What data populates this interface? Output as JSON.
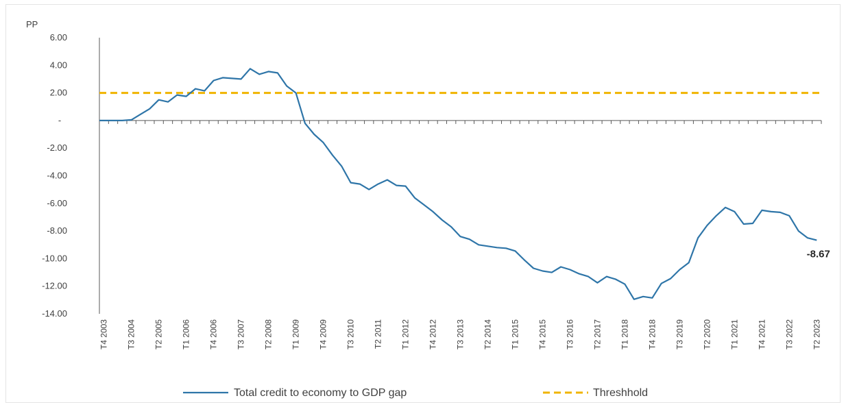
{
  "chart_data": {
    "type": "line",
    "title": "",
    "ylabel": "PP",
    "xlabel": "",
    "ylim": [
      -14,
      6
    ],
    "yticks": [
      "6.00",
      "4.00",
      "2.00",
      "-",
      "-2.00",
      "-4.00",
      "-6.00",
      "-8.00",
      "-10.00",
      "-12.00",
      "-14.00"
    ],
    "xtick_labels": [
      "T4 2003",
      "T3 2004",
      "T2 2005",
      "T1 2006",
      "T4 2006",
      "T3 2007",
      "T2 2008",
      "T1 2009",
      "T4 2009",
      "T3 2010",
      "T2 2011",
      "T1 2012",
      "T4 2012",
      "T3 2013",
      "T2 2014",
      "T1 2015",
      "T4 2015",
      "T3 2016",
      "T2 2017",
      "T1 2018",
      "T4 2018",
      "T3 2019",
      "T2 2020",
      "T1 2021",
      "T4 2021",
      "T3 2022",
      "T2 2023"
    ],
    "x_first": "T4 2003",
    "x_last": "T2 2023",
    "grid": false,
    "legend_position": "bottom",
    "series": [
      {
        "name": "Total credit to economy to GDP gap",
        "color": "#2e75a8",
        "style": "solid",
        "values": [
          0.0,
          0.0,
          0.0,
          0.05,
          0.45,
          0.85,
          1.5,
          1.35,
          1.85,
          1.75,
          2.3,
          2.15,
          2.9,
          3.1,
          3.05,
          3.0,
          3.75,
          3.35,
          3.55,
          3.45,
          2.5,
          2.0,
          -0.2,
          -1.0,
          -1.6,
          -2.5,
          -3.3,
          -4.5,
          -4.6,
          -5.0,
          -4.6,
          -4.3,
          -4.7,
          -4.75,
          -5.6,
          -6.1,
          -6.6,
          -7.2,
          -7.7,
          -8.4,
          -8.6,
          -9.0,
          -9.1,
          -9.2,
          -9.25,
          -9.45,
          -10.1,
          -10.7,
          -10.9,
          -11.0,
          -10.6,
          -10.8,
          -11.1,
          -11.3,
          -11.75,
          -11.3,
          -11.5,
          -11.85,
          -12.95,
          -12.75,
          -12.85,
          -11.8,
          -11.45,
          -10.8,
          -10.3,
          -8.5,
          -7.6,
          -6.9,
          -6.3,
          -6.6,
          -7.5,
          -7.45,
          -6.5,
          -6.6,
          -6.65,
          -6.9,
          -8.0,
          -8.5,
          -8.67
        ]
      },
      {
        "name": "Threshhold",
        "color": "#f0b400",
        "style": "dashed",
        "value": 2.0
      }
    ],
    "annotation": {
      "text": "-8.67"
    }
  }
}
